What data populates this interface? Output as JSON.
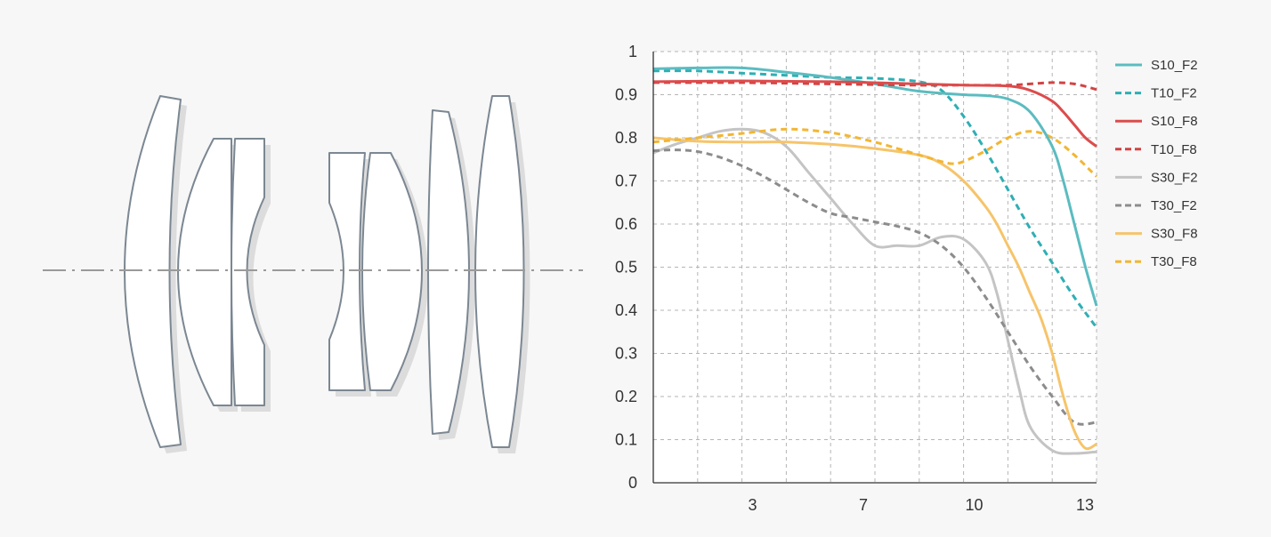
{
  "diagram": {
    "optical_axis_color": "#9a9a9a",
    "lens_stroke": "#7b8792",
    "lens_fill": "#ffffff",
    "shadow_color": "#dcdcdc"
  },
  "chart_data": {
    "type": "line",
    "title": "",
    "xlabel": "",
    "ylabel": "",
    "xlim": [
      0,
      20
    ],
    "ylim": [
      0,
      1
    ],
    "x_tick_labels": [
      {
        "x": 5,
        "label": "3"
      },
      {
        "x": 10,
        "label": "7"
      },
      {
        "x": 15,
        "label": "10"
      },
      {
        "x": 20,
        "label": "13"
      }
    ],
    "y_ticks": [
      0,
      0.1,
      0.2,
      0.3,
      0.4,
      0.5,
      0.6,
      0.7,
      0.8,
      0.9,
      1
    ],
    "y_tick_labels": [
      "0",
      "0.1",
      "0.2",
      "0.3",
      "0.4",
      "0.5",
      "0.6",
      "0.7",
      "0.8",
      "0.9",
      "1"
    ],
    "grid": true,
    "legend_position": "right",
    "series": [
      {
        "name": "S10_F2",
        "color": "#5bbcc0",
        "dashed": false,
        "x": [
          0,
          2,
          4,
          6,
          8,
          10,
          12,
          14,
          15,
          16,
          17,
          18,
          18.5,
          19,
          19.5,
          20
        ],
        "y": [
          0.96,
          0.962,
          0.962,
          0.952,
          0.94,
          0.925,
          0.908,
          0.9,
          0.898,
          0.89,
          0.86,
          0.78,
          0.7,
          0.6,
          0.5,
          0.41
        ]
      },
      {
        "name": "T10_F2",
        "color": "#2eafb4",
        "dashed": true,
        "x": [
          0,
          2,
          4,
          6,
          8,
          10,
          12,
          13,
          14,
          15,
          16,
          17,
          18,
          19,
          20
        ],
        "y": [
          0.955,
          0.955,
          0.95,
          0.945,
          0.94,
          0.938,
          0.93,
          0.91,
          0.85,
          0.77,
          0.68,
          0.59,
          0.51,
          0.43,
          0.36
        ]
      },
      {
        "name": "S10_F8",
        "color": "#dc4c4c",
        "dashed": false,
        "x": [
          0,
          4,
          8,
          12,
          14,
          16,
          17,
          18,
          18.5,
          19,
          19.5,
          20
        ],
        "y": [
          0.93,
          0.932,
          0.93,
          0.925,
          0.922,
          0.92,
          0.91,
          0.885,
          0.86,
          0.83,
          0.8,
          0.78
        ]
      },
      {
        "name": "T10_F8",
        "color": "#d24343",
        "dashed": true,
        "x": [
          0,
          4,
          8,
          12,
          14,
          16,
          17,
          18,
          19,
          20
        ],
        "y": [
          0.928,
          0.928,
          0.925,
          0.922,
          0.922,
          0.922,
          0.925,
          0.928,
          0.925,
          0.912
        ]
      },
      {
        "name": "S30_F2",
        "color": "#c4c4c4",
        "dashed": false,
        "x": [
          0,
          1,
          2,
          3,
          4,
          5,
          6,
          7,
          8,
          9,
          10,
          11,
          12,
          13,
          14,
          15,
          15.5,
          16,
          16.5,
          17,
          18,
          19,
          20
        ],
        "y": [
          0.765,
          0.785,
          0.8,
          0.815,
          0.82,
          0.812,
          0.78,
          0.72,
          0.66,
          0.6,
          0.55,
          0.55,
          0.55,
          0.57,
          0.565,
          0.51,
          0.44,
          0.33,
          0.22,
          0.13,
          0.075,
          0.068,
          0.072
        ]
      },
      {
        "name": "T30_F2",
        "color": "#8c8c8c",
        "dashed": true,
        "x": [
          0,
          1,
          2,
          3,
          4,
          5,
          6,
          7,
          8,
          9,
          10,
          11,
          12,
          13,
          14,
          15,
          16,
          17,
          18,
          19,
          20
        ],
        "y": [
          0.77,
          0.772,
          0.768,
          0.755,
          0.735,
          0.71,
          0.68,
          0.65,
          0.625,
          0.615,
          0.605,
          0.595,
          0.58,
          0.55,
          0.5,
          0.43,
          0.35,
          0.27,
          0.2,
          0.14,
          0.14
        ]
      },
      {
        "name": "S30_F8",
        "color": "#f6c46a",
        "dashed": false,
        "x": [
          0,
          2,
          4,
          6,
          8,
          10,
          12,
          13,
          14,
          15,
          15.5,
          16,
          16.5,
          17,
          17.5,
          18,
          18.5,
          19,
          19.5,
          20
        ],
        "y": [
          0.8,
          0.792,
          0.79,
          0.79,
          0.785,
          0.775,
          0.76,
          0.74,
          0.7,
          0.64,
          0.6,
          0.55,
          0.5,
          0.44,
          0.38,
          0.3,
          0.2,
          0.12,
          0.08,
          0.09
        ]
      },
      {
        "name": "T30_F8",
        "color": "#f2b633",
        "dashed": true,
        "x": [
          0,
          2,
          4,
          6,
          8,
          10,
          12,
          13,
          13.5,
          14,
          15,
          16,
          17,
          18,
          19,
          20
        ],
        "y": [
          0.79,
          0.8,
          0.81,
          0.82,
          0.812,
          0.79,
          0.76,
          0.745,
          0.74,
          0.745,
          0.77,
          0.8,
          0.815,
          0.8,
          0.76,
          0.71
        ]
      }
    ]
  }
}
